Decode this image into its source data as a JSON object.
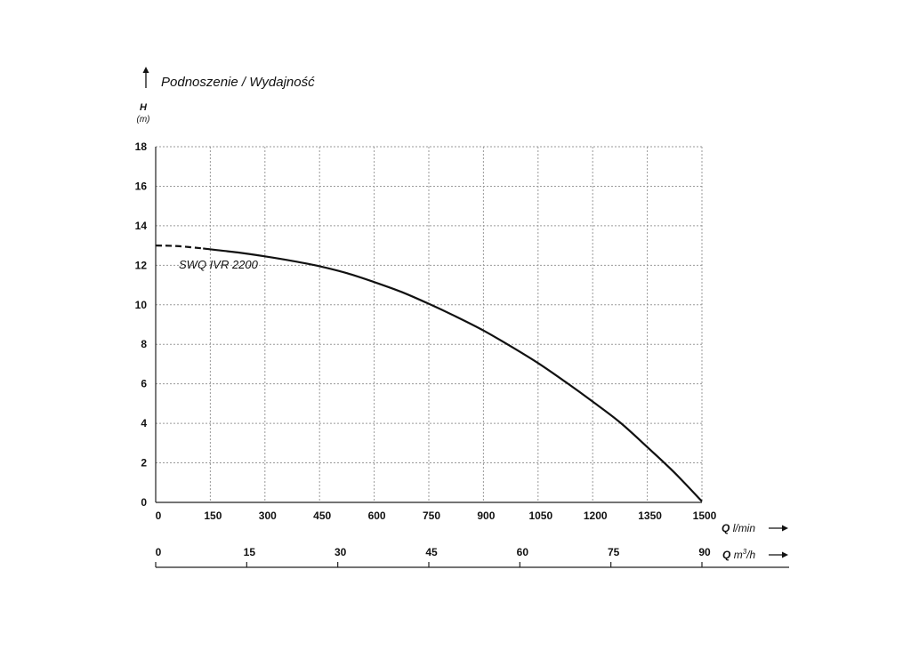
{
  "chart_data": {
    "type": "line",
    "title": "Podnoszenie / Wydajność",
    "ylabel": "H",
    "yunit": "(m)",
    "xlabel": "Q",
    "xunit": "l/min",
    "x2label": "Q",
    "x2unit_base": "m",
    "x2unit_sup": "3",
    "x2unit_tail": "/h",
    "xlim": [
      0,
      1500
    ],
    "ylim": [
      0,
      18
    ],
    "x_ticks": [
      0,
      150,
      300,
      450,
      600,
      750,
      900,
      1050,
      1200,
      1350,
      1500
    ],
    "y_ticks": [
      0,
      2,
      4,
      6,
      8,
      10,
      12,
      14,
      16,
      18
    ],
    "x2lim": [
      0,
      90
    ],
    "x2_ticks": [
      0,
      15,
      30,
      45,
      60,
      75,
      90
    ],
    "grid": true,
    "series": [
      {
        "name": "SWQ IVR 2200",
        "dashed_until_x": 130,
        "x": [
          0,
          60,
          130,
          225,
          300,
          375,
          450,
          525,
          600,
          675,
          750,
          825,
          900,
          975,
          1050,
          1125,
          1200,
          1275,
          1350,
          1425,
          1500
        ],
        "y": [
          13.0,
          12.97,
          12.85,
          12.65,
          12.45,
          12.22,
          11.95,
          11.6,
          11.15,
          10.65,
          10.05,
          9.4,
          8.7,
          7.9,
          7.05,
          6.1,
          5.1,
          4.05,
          2.8,
          1.5,
          0.05
        ]
      }
    ]
  }
}
